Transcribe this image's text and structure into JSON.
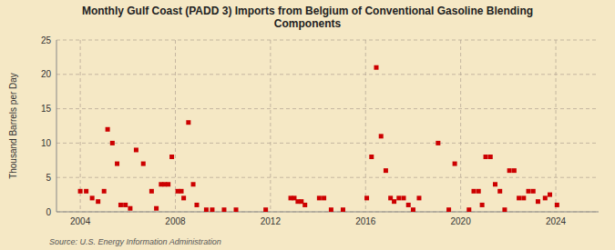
{
  "chart_data": {
    "type": "scatter",
    "title": "Monthly Gulf Coast (PADD 3) Imports from Belgium of Conventional Gasoline Blending\nComponents",
    "ylabel": "Thousand Barrels per Day",
    "source": "Source: U.S. Energy Information Administration",
    "color": "#cc0000",
    "marker": "square",
    "grid": true,
    "xlim": [
      2003.0,
      2025.8
    ],
    "xticks": [
      2004,
      2008,
      2012,
      2016,
      2020,
      2024
    ],
    "ylim": [
      0,
      25
    ],
    "yticks": [
      0,
      5,
      10,
      15,
      20,
      25
    ],
    "x": [
      2004.0,
      2004.25,
      2004.5,
      2004.75,
      2005.0,
      2005.15,
      2005.35,
      2005.55,
      2005.7,
      2005.9,
      2006.1,
      2006.35,
      2006.65,
      2007.0,
      2007.2,
      2007.4,
      2007.55,
      2007.7,
      2007.85,
      2008.1,
      2008.25,
      2008.35,
      2008.55,
      2008.75,
      2008.9,
      2009.3,
      2009.55,
      2010.05,
      2010.55,
      2011.8,
      2012.85,
      2013.0,
      2013.15,
      2013.3,
      2013.45,
      2014.05,
      2014.25,
      2014.55,
      2015.05,
      2016.05,
      2016.25,
      2016.45,
      2016.65,
      2016.85,
      2017.05,
      2017.2,
      2017.4,
      2017.6,
      2017.8,
      2018.0,
      2018.25,
      2019.05,
      2019.5,
      2019.75,
      2020.35,
      2020.55,
      2020.75,
      2020.9,
      2021.05,
      2021.25,
      2021.45,
      2021.65,
      2021.85,
      2022.05,
      2022.25,
      2022.45,
      2022.65,
      2022.85,
      2023.05,
      2023.25,
      2023.55,
      2023.75,
      2024.05
    ],
    "values": [
      3.0,
      3.0,
      2.0,
      1.5,
      3.0,
      12.0,
      10.0,
      7.0,
      1.0,
      1.0,
      0.5,
      9.0,
      7.0,
      3.0,
      0.5,
      4.0,
      4.0,
      4.0,
      8.0,
      3.0,
      3.0,
      2.0,
      13.0,
      4.0,
      1.0,
      0.3,
      0.3,
      0.3,
      0.3,
      0.3,
      2.0,
      2.0,
      1.5,
      1.5,
      1.0,
      2.0,
      2.0,
      0.3,
      0.3,
      2.0,
      8.0,
      21.0,
      11.0,
      6.0,
      2.0,
      1.5,
      2.0,
      2.0,
      1.0,
      0.3,
      2.0,
      10.0,
      0.3,
      7.0,
      0.3,
      3.0,
      3.0,
      1.0,
      8.0,
      8.0,
      4.0,
      3.0,
      0.3,
      6.0,
      6.0,
      2.0,
      2.0,
      3.0,
      3.0,
      1.5,
      2.0,
      2.5,
      1.0
    ]
  }
}
